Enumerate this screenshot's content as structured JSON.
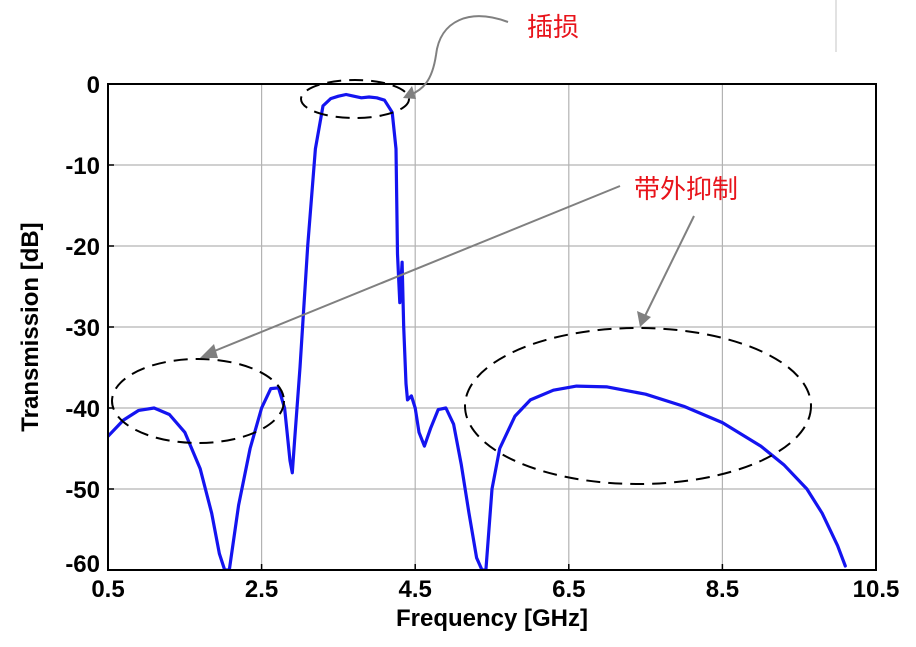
{
  "chart_data": {
    "type": "line",
    "xlabel": "Frequency [GHz]",
    "ylabel": "Transmission [dB]",
    "xlim": [
      0.5,
      10.5
    ],
    "ylim": [
      -60,
      0
    ],
    "x_ticks": [
      0.5,
      2.5,
      4.5,
      6.5,
      8.5,
      10.5
    ],
    "x_tick_labels": [
      "0.5",
      "2.5",
      "4.5",
      "6.5",
      "8.5",
      "10.5"
    ],
    "y_ticks": [
      0,
      -10,
      -20,
      -30,
      -40,
      -50,
      -60
    ],
    "y_tick_labels": [
      "0",
      "-10",
      "-20",
      "-30",
      "-40",
      "-50",
      "-60"
    ],
    "grid": true,
    "series": [
      {
        "color": "#1414f0",
        "x": [
          0.5,
          0.7,
          0.9,
          1.1,
          1.3,
          1.5,
          1.7,
          1.85,
          1.95,
          2.02,
          2.08,
          2.2,
          2.35,
          2.5,
          2.62,
          2.72,
          2.8,
          2.87,
          2.9,
          2.93,
          3.0,
          3.1,
          3.2,
          3.3,
          3.4,
          3.5,
          3.6,
          3.7,
          3.8,
          3.9,
          4.0,
          4.1,
          4.2,
          4.25,
          4.27,
          4.3,
          4.33,
          4.35,
          4.38,
          4.4,
          4.45,
          4.5,
          4.55,
          4.62,
          4.7,
          4.8,
          4.9,
          5.0,
          5.1,
          5.2,
          5.3,
          5.37,
          5.42,
          5.5,
          5.6,
          5.8,
          6.0,
          6.3,
          6.6,
          7.0,
          7.5,
          8.0,
          8.5,
          9.0,
          9.3,
          9.6,
          9.8,
          10.0,
          10.1
        ],
        "y": [
          -43.5,
          -41.5,
          -40.3,
          -40.0,
          -40.8,
          -43.0,
          -47.5,
          -53.0,
          -58.0,
          -60.0,
          -60.0,
          -52.0,
          -45.0,
          -40.0,
          -37.6,
          -37.5,
          -40.0,
          -46.5,
          -48.0,
          -44.0,
          -35.0,
          -20.0,
          -8.0,
          -2.7,
          -1.8,
          -1.5,
          -1.3,
          -1.5,
          -1.7,
          -1.6,
          -1.7,
          -2.0,
          -3.5,
          -8.0,
          -21.0,
          -27.0,
          -22.0,
          -30.0,
          -37.0,
          -39.0,
          -38.5,
          -40.0,
          -43.0,
          -44.7,
          -42.5,
          -40.2,
          -40.0,
          -42.0,
          -47.0,
          -53.0,
          -58.5,
          -60.0,
          -60.0,
          -50.0,
          -45.0,
          -41.0,
          -39.0,
          -37.8,
          -37.3,
          -37.4,
          -38.3,
          -39.8,
          -41.8,
          -44.7,
          -47.0,
          -50.0,
          -53.0,
          -57.0,
          -59.5
        ]
      }
    ],
    "annotations": [
      {
        "text": "插损"
      },
      {
        "text": "带外抑制"
      }
    ]
  }
}
